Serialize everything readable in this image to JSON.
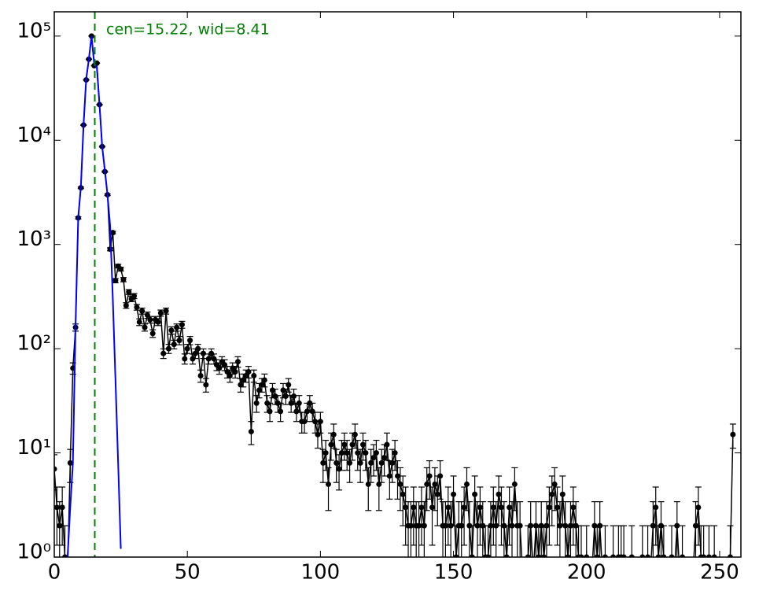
{
  "chart_data": {
    "type": "errorbar",
    "annotation": "cen=15.22, wid=8.41",
    "annotation_color": "#008000",
    "vline": 15.22,
    "xlim": [
      0,
      258
    ],
    "ylim": [
      1,
      171000
    ],
    "log_y": true,
    "xticks": [
      0,
      50,
      100,
      150,
      200,
      250
    ],
    "yticks": [
      {
        "value": 1,
        "label": "10⁰"
      },
      {
        "value": 10,
        "label": "10¹"
      },
      {
        "value": 100,
        "label": "10²"
      },
      {
        "value": 1000,
        "label": "10³"
      },
      {
        "value": 10000,
        "label": "10⁴"
      },
      {
        "value": 100000,
        "label": "10⁵"
      }
    ],
    "series": [
      {
        "color": "#000000",
        "x": [
          0,
          1,
          2,
          3,
          4,
          5,
          6,
          7,
          8,
          9,
          10,
          11,
          12,
          13,
          14,
          15,
          16,
          17,
          18,
          19,
          20,
          21,
          22,
          23,
          24,
          25,
          26,
          27,
          28,
          29,
          30,
          31,
          32,
          33,
          34,
          35,
          36,
          37,
          38,
          39,
          40,
          41,
          42,
          43,
          44,
          45,
          46,
          47,
          48,
          49,
          50,
          51,
          52,
          53,
          54,
          55,
          56,
          57,
          58,
          59,
          60,
          61,
          62,
          63,
          64,
          65,
          66,
          67,
          68,
          69,
          70,
          71,
          72,
          73,
          74,
          75,
          76,
          77,
          78,
          79,
          80,
          81,
          82,
          83,
          84,
          85,
          86,
          87,
          88,
          89,
          90,
          91,
          92,
          93,
          94,
          95,
          96,
          97,
          98,
          99,
          100,
          101,
          102,
          103,
          104,
          105,
          106,
          107,
          108,
          109,
          110,
          111,
          112,
          113,
          114,
          115,
          116,
          117,
          118,
          119,
          120,
          121,
          122,
          123,
          124,
          125,
          126,
          127,
          128,
          129,
          130,
          131,
          132,
          133,
          134,
          135,
          136,
          137,
          138,
          139,
          140,
          141,
          142,
          143,
          144,
          145,
          146,
          147,
          148,
          149,
          150,
          151,
          152,
          153,
          154,
          155,
          156,
          157,
          158,
          159,
          160,
          161,
          162,
          163,
          164,
          165,
          166,
          167,
          168,
          169,
          170,
          171,
          172,
          173,
          174,
          175,
          176,
          177,
          178,
          179,
          180,
          181,
          182,
          183,
          184,
          185,
          186,
          187,
          188,
          189,
          190,
          191,
          192,
          193,
          194,
          195,
          196,
          197,
          198,
          199,
          200,
          201,
          202,
          203,
          204,
          205,
          206,
          207,
          208,
          209,
          210,
          211,
          212,
          213,
          214,
          215,
          216,
          217,
          218,
          219,
          220,
          221,
          222,
          223,
          224,
          225,
          226,
          227,
          228,
          229,
          230,
          231,
          232,
          233,
          234,
          235,
          236,
          237,
          238,
          239,
          240,
          241,
          242,
          243,
          244,
          245,
          246,
          247,
          248,
          249,
          250,
          251,
          252,
          253,
          254,
          255
        ],
        "values": [
          7,
          3,
          2,
          3,
          1,
          0,
          8,
          65,
          160,
          1800,
          3500,
          14000,
          38000,
          60000,
          100000,
          52000,
          55000,
          22000,
          8700,
          5000,
          3000,
          900,
          1300,
          450,
          620,
          580,
          460,
          260,
          350,
          300,
          320,
          250,
          180,
          230,
          160,
          210,
          190,
          140,
          190,
          180,
          220,
          90,
          230,
          100,
          150,
          110,
          160,
          120,
          170,
          80,
          100,
          120,
          80,
          90,
          100,
          55,
          90,
          45,
          80,
          90,
          80,
          70,
          65,
          75,
          70,
          60,
          55,
          65,
          60,
          75,
          45,
          50,
          55,
          60,
          16,
          55,
          30,
          40,
          45,
          50,
          30,
          25,
          40,
          35,
          30,
          25,
          40,
          35,
          45,
          30,
          35,
          25,
          30,
          20,
          20,
          25,
          30,
          25,
          20,
          15,
          20,
          8,
          10,
          5,
          12,
          15,
          8,
          7,
          10,
          12,
          10,
          8,
          12,
          15,
          10,
          8,
          12,
          10,
          5,
          8,
          9,
          10,
          5,
          8,
          9,
          12,
          6,
          8,
          10,
          6,
          5,
          4,
          3,
          2,
          2,
          3,
          2,
          2,
          3,
          2,
          5,
          6,
          3,
          5,
          4,
          6,
          2,
          2,
          3,
          2,
          4,
          1,
          2,
          2,
          3,
          5,
          2,
          1,
          4,
          2,
          3,
          2,
          1,
          1,
          2,
          3,
          2,
          4,
          3,
          2,
          1,
          3,
          2,
          5,
          2,
          2,
          0,
          0,
          1,
          2,
          0,
          2,
          1,
          2,
          1,
          2,
          3,
          4,
          5,
          3,
          2,
          4,
          2,
          1,
          2,
          3,
          2,
          1,
          1,
          0,
          1,
          0,
          0,
          2,
          1,
          2,
          0,
          1,
          0,
          0,
          1,
          0,
          1,
          1,
          1,
          0,
          0,
          1,
          0,
          0,
          0,
          1,
          0,
          1,
          0,
          2,
          3,
          1,
          2,
          1,
          0,
          0,
          1,
          0,
          2,
          0,
          1,
          0,
          0,
          0,
          0,
          2,
          3,
          1,
          1,
          0,
          1,
          0,
          1,
          0,
          0,
          0,
          0,
          0,
          1,
          15
        ],
        "errors": [
          2.6,
          1.7,
          1.4,
          1.7,
          1,
          0,
          2.8,
          8.1,
          12.6,
          42.4,
          59.2,
          118.3,
          194.9,
          244.9,
          316.2,
          228,
          234.5,
          148.3,
          93.3,
          70.7,
          54.8,
          30,
          36.1,
          21.2,
          24.9,
          24.1,
          21.4,
          16.1,
          18.7,
          17.3,
          17.9,
          15.8,
          13.4,
          15.2,
          12.6,
          14.5,
          13.8,
          11.8,
          13.8,
          13.4,
          14.8,
          9.5,
          15.2,
          10,
          12.2,
          10.5,
          12.6,
          11,
          13,
          8.9,
          10,
          11,
          8.9,
          9.5,
          10,
          7.4,
          9.5,
          6.7,
          8.9,
          9.5,
          8.9,
          8.4,
          8.1,
          8.7,
          8.4,
          7.7,
          7.4,
          8.1,
          7.7,
          8.7,
          6.7,
          7.1,
          7.4,
          7.7,
          4,
          7.4,
          5.5,
          6.3,
          6.7,
          7.1,
          5.5,
          5,
          6.3,
          5.9,
          5.5,
          5,
          6.3,
          5.9,
          6.7,
          5.5,
          5.9,
          5,
          5.5,
          4.5,
          4.5,
          5,
          5.5,
          5,
          4.5,
          3.9,
          4.5,
          2.8,
          3.2,
          2.2,
          3.5,
          3.9,
          2.8,
          2.6,
          3.2,
          3.5,
          3.2,
          2.8,
          3.5,
          3.9,
          3.2,
          2.8,
          3.5,
          3.2,
          2.2,
          2.8,
          3,
          3.2,
          2.2,
          2.8,
          3,
          3.5,
          2.4,
          2.8,
          3.2,
          2.4,
          2.2,
          2,
          1.7,
          1.4,
          1.4,
          1.7,
          1.4,
          1.4,
          1.7,
          1.4,
          2.2,
          2.4,
          1.7,
          2.2,
          2,
          2.4,
          1.4,
          1.4,
          1.7,
          1.4,
          2,
          1,
          1.4,
          1.4,
          1.7,
          2.2,
          1.4,
          1,
          2,
          1.4,
          1.7,
          1.4,
          1,
          1,
          1.4,
          1.7,
          1.4,
          2,
          1.7,
          1.4,
          1,
          1.7,
          1.4,
          2.2,
          1.4,
          1.4,
          0,
          0,
          1,
          1.4,
          0,
          1.4,
          1,
          1.4,
          1,
          1.4,
          1.7,
          2,
          2.2,
          1.7,
          1.4,
          2,
          1.4,
          1,
          1.4,
          1.7,
          1.4,
          1,
          1,
          0,
          1,
          0,
          0,
          1.4,
          1,
          1.4,
          0,
          1,
          0,
          0,
          1,
          0,
          1,
          1,
          1,
          0,
          0,
          1,
          0,
          0,
          0,
          1,
          0,
          1,
          0,
          1.4,
          1.7,
          1,
          1.4,
          1,
          0,
          0,
          1,
          0,
          1.4,
          0,
          1,
          0,
          0,
          0,
          0,
          1.4,
          1.7,
          1,
          1,
          0,
          1,
          0,
          1,
          0,
          0,
          0,
          0,
          0,
          1,
          3.9
        ]
      },
      {
        "color": "#0000ff",
        "x": [
          5,
          6,
          7,
          8,
          9,
          10,
          11,
          12,
          13,
          14,
          15,
          16,
          17,
          18,
          19,
          20,
          21,
          22,
          23,
          24,
          25
        ],
        "values": [
          1,
          3,
          8,
          170,
          1800,
          3600,
          14000,
          39000,
          60000,
          100000,
          55000,
          50000,
          22000,
          8700,
          5200,
          3000,
          1500,
          300,
          50,
          8,
          1.2
        ]
      }
    ]
  }
}
